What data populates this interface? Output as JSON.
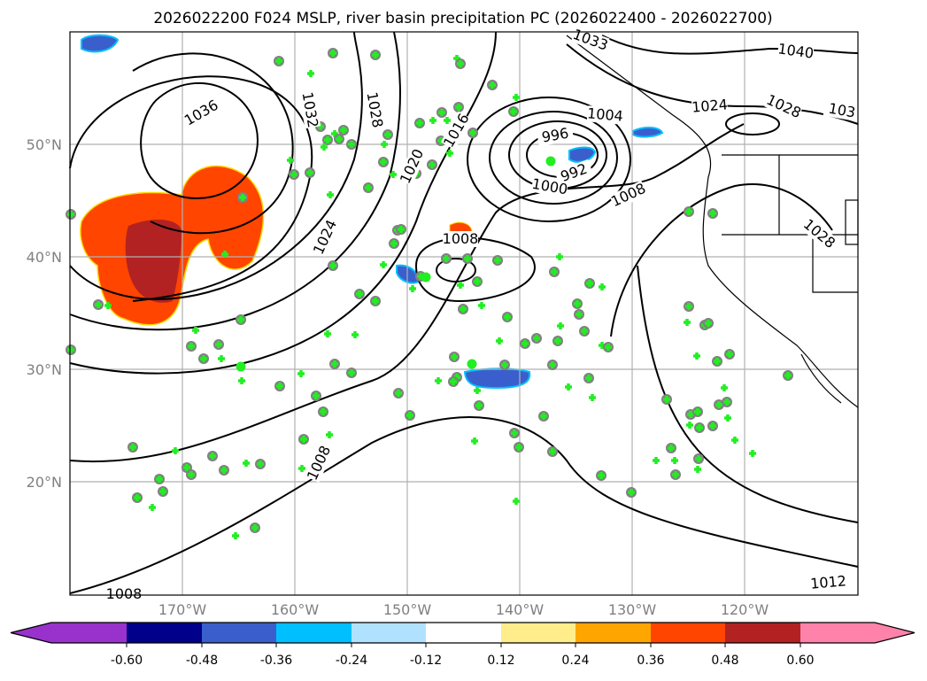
{
  "title": "2026022200 F024 MSLP, river basin precipitation PC (2026022400 - 2026022700)",
  "lat_labels": [
    "50°N",
    "40°N",
    "30°N",
    "20°N"
  ],
  "lon_labels": [
    "170°W",
    "160°W",
    "150°W",
    "140°W",
    "130°W",
    "120°W"
  ],
  "contour_labels": [
    "1036",
    "1032",
    "1028",
    "1024",
    "1020",
    "1016",
    "1008",
    "1004",
    "996",
    "992",
    "1000",
    "1008",
    "1040",
    "1024",
    "1028",
    "103",
    "1033",
    "1028",
    "1008",
    "1012",
    "1008"
  ],
  "colorbar": {
    "ticks": [
      "-0.60",
      "-0.48",
      "-0.36",
      "-0.24",
      "-0.12",
      "0.12",
      "0.24",
      "0.36",
      "0.48",
      "0.60"
    ],
    "colors": [
      "#9932cc",
      "#00008b",
      "#3a5fcd",
      "#00bfff",
      "#b0e2ff",
      "#ffffff",
      "#ffec8b",
      "#ffa500",
      "#ff4500",
      "#b22222",
      "#ff82ab"
    ]
  }
}
